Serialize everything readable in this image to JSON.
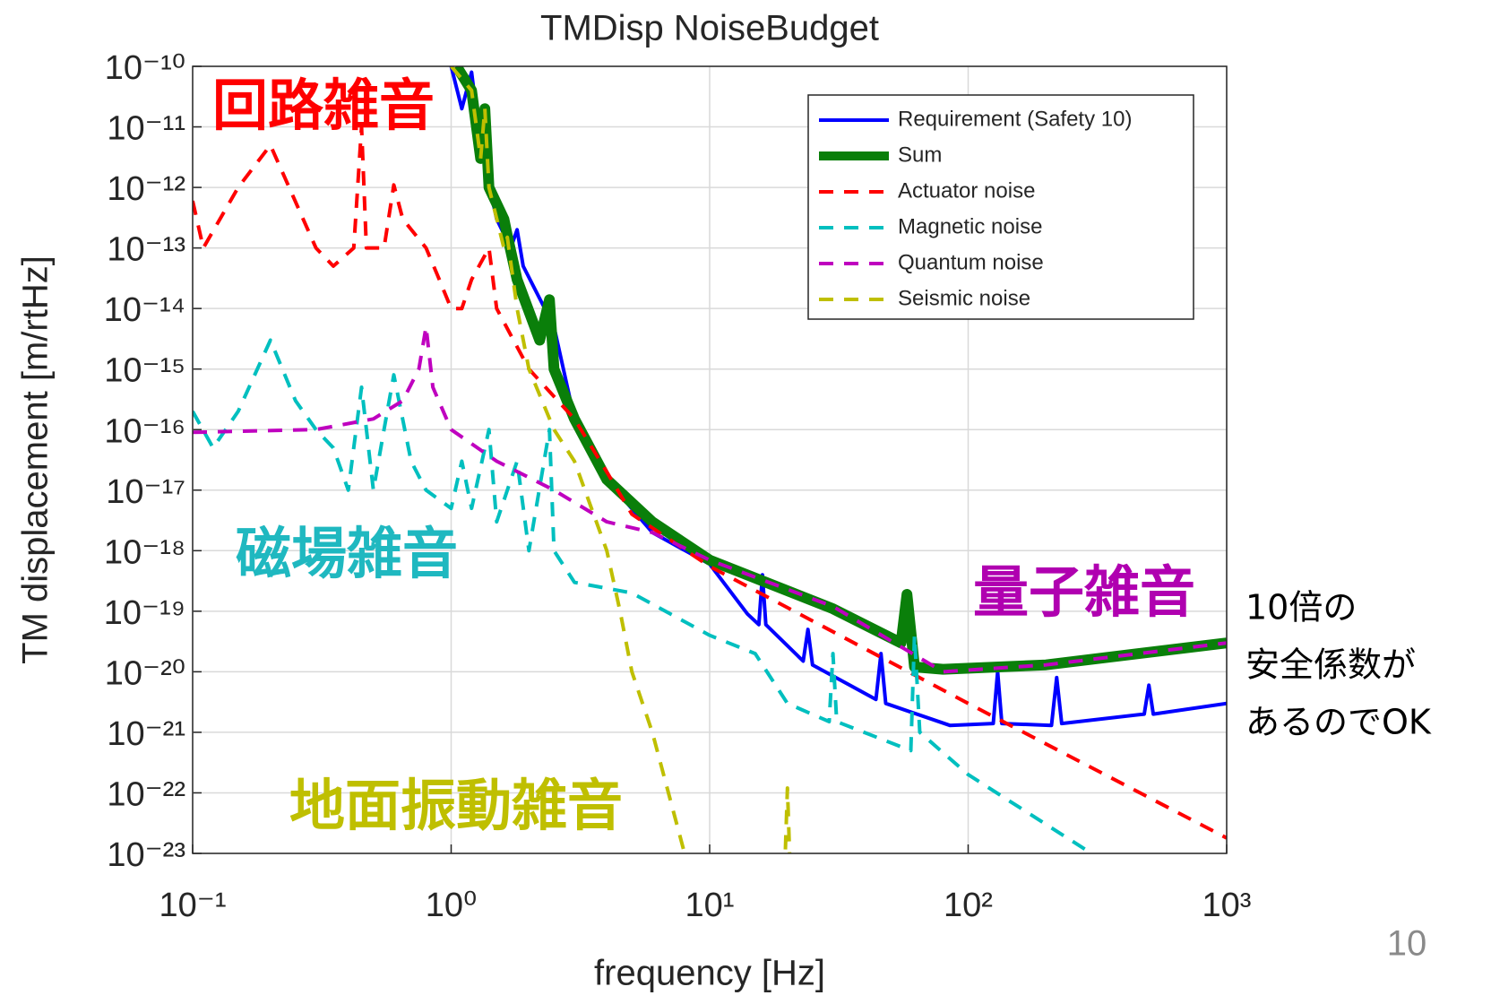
{
  "chart_data": {
    "type": "line",
    "title": "TMDisp NoiseBudget",
    "x_label": "frequency [Hz]",
    "y_label": "TM displacement [m/rtHz]",
    "xscale": "log",
    "yscale": "log",
    "grid": true,
    "legend": "upper right",
    "xlim": [
      0.1,
      1000
    ],
    "xticks": [
      {
        "value": 0.1,
        "label": "10⁻¹"
      },
      {
        "value": 1,
        "label": "10⁰"
      },
      {
        "value": 10,
        "label": "10¹"
      },
      {
        "value": 100,
        "label": "10²"
      },
      {
        "value": 1000,
        "label": "10³"
      }
    ],
    "ylim": [
      1e-23,
      1e-10
    ],
    "yticks": [
      {
        "value": 1e-10,
        "label": "10⁻¹⁰"
      },
      {
        "value": 1e-11,
        "label": "10⁻¹¹"
      },
      {
        "value": 1e-12,
        "label": "10⁻¹²"
      },
      {
        "value": 1e-13,
        "label": "10⁻¹³"
      },
      {
        "value": 1e-14,
        "label": "10⁻¹⁴"
      },
      {
        "value": 1e-15,
        "label": "10⁻¹⁵"
      },
      {
        "value": 1e-16,
        "label": "10⁻¹⁶"
      },
      {
        "value": 1e-17,
        "label": "10⁻¹⁷"
      },
      {
        "value": 1e-18,
        "label": "10⁻¹⁸"
      },
      {
        "value": 1e-19,
        "label": "10⁻¹⁹"
      },
      {
        "value": 1e-20,
        "label": "10⁻²⁰"
      },
      {
        "value": 1e-21,
        "label": "10⁻²¹"
      },
      {
        "value": 1e-22,
        "label": "10⁻²²"
      },
      {
        "value": 1e-23,
        "label": "10⁻²³"
      }
    ],
    "series": [
      {
        "name": "Requirement (Safety 10)",
        "color": "#0000ff",
        "linestyle": "solid",
        "linewidth": 4,
        "x": [
          1.0,
          1.1,
          1.2,
          1.3,
          1.5,
          1.7,
          1.8,
          1.9,
          2.5,
          3,
          4,
          6,
          10,
          14,
          15.5,
          16,
          16.5,
          23,
          24,
          25,
          44,
          46,
          48,
          85,
          125,
          130,
          135,
          210,
          220,
          230,
          480,
          500,
          520,
          1000
        ],
        "values": [
          1e-10,
          2e-11,
          8e-11,
          5e-12,
          3e-13,
          1e-13,
          2e-13,
          5e-14,
          5e-15,
          1.5e-16,
          1.5e-17,
          2e-18,
          6e-19,
          9e-20,
          6e-20,
          4e-19,
          6e-20,
          1.5e-20,
          5e-20,
          1.3e-20,
          3.5e-21,
          2e-20,
          3e-21,
          1.3e-21,
          1.4e-21,
          1e-20,
          1.4e-21,
          1.3e-21,
          8e-21,
          1.4e-21,
          2e-21,
          6e-21,
          2e-21,
          3e-21
        ]
      },
      {
        "name": "Sum",
        "color": "#0a7f0a",
        "linestyle": "solid",
        "linewidth": 12,
        "x": [
          1.05,
          1.2,
          1.3,
          1.35,
          1.4,
          1.6,
          1.65,
          1.8,
          2.2,
          2.4,
          2.5,
          3,
          4,
          6,
          10,
          30,
          55,
          58,
          62,
          80,
          200,
          1000
        ],
        "values": [
          1e-10,
          4e-11,
          3e-12,
          2e-11,
          1e-12,
          3e-13,
          1.6e-13,
          3e-14,
          3e-15,
          1.4e-14,
          1e-15,
          1.5e-16,
          1.5e-17,
          3e-18,
          7e-19,
          1.1e-19,
          3e-20,
          1.9e-19,
          1.2e-20,
          1.1e-20,
          1.3e-20,
          3e-20
        ]
      },
      {
        "name": "Actuator noise",
        "color": "#ff0000",
        "linestyle": "dashed",
        "linewidth": 4,
        "x": [
          0.1,
          0.11,
          0.15,
          0.2,
          0.3,
          0.35,
          0.42,
          0.45,
          0.47,
          0.55,
          0.6,
          0.65,
          0.8,
          0.9,
          1.0,
          1.1,
          1.2,
          1.4,
          1.5,
          2,
          3,
          4,
          5,
          10,
          100,
          1000
        ],
        "values": [
          6e-13,
          1e-13,
          1e-12,
          5e-12,
          1e-13,
          5e-14,
          1e-13,
          1e-11,
          1e-13,
          1e-13,
          1.1e-12,
          3e-13,
          1e-13,
          3e-14,
          1e-14,
          1e-14,
          3e-14,
          1e-13,
          1e-14,
          1e-15,
          1.5e-16,
          2e-17,
          4e-18,
          5.5e-19,
          3e-21,
          1.8e-23
        ]
      },
      {
        "name": "Magnetic noise",
        "color": "#00bfbf",
        "linestyle": "dashed",
        "linewidth": 4,
        "x": [
          0.1,
          0.12,
          0.15,
          0.2,
          0.25,
          0.3,
          0.35,
          0.4,
          0.45,
          0.5,
          0.55,
          0.6,
          0.7,
          0.8,
          1.0,
          1.1,
          1.2,
          1.4,
          1.5,
          1.8,
          2,
          2.4,
          2.5,
          3,
          5,
          10,
          15,
          20,
          29,
          30,
          31,
          60,
          62,
          65,
          100,
          300
        ],
        "values": [
          2e-16,
          5e-17,
          2e-16,
          3e-15,
          3e-16,
          1e-16,
          5e-17,
          1e-17,
          5e-16,
          1e-17,
          1e-16,
          8e-16,
          3e-17,
          1e-17,
          5e-18,
          3e-17,
          5e-18,
          1e-16,
          3e-18,
          3e-17,
          1e-18,
          1e-16,
          1e-18,
          3e-19,
          2e-19,
          4e-20,
          2e-20,
          3e-21,
          1.5e-21,
          2e-20,
          1.5e-21,
          5e-22,
          4e-20,
          1e-21,
          2e-22,
          1e-23
        ]
      },
      {
        "name": "Quantum noise",
        "color": "#bf00bf",
        "linestyle": "dashed",
        "linewidth": 4,
        "x": [
          0.1,
          0.3,
          0.5,
          0.65,
          0.75,
          0.8,
          0.85,
          1,
          1.5,
          2.5,
          4,
          6,
          10,
          30,
          80,
          200,
          1000
        ],
        "values": [
          9e-17,
          1e-16,
          1.5e-16,
          3e-16,
          1e-15,
          5e-15,
          5e-16,
          1e-16,
          3e-17,
          1e-17,
          3e-18,
          2e-18,
          7e-19,
          1.2e-19,
          1e-20,
          1.3e-20,
          3e-20
        ]
      },
      {
        "name": "Seismic noise",
        "color": "#bfbf00",
        "linestyle": "dashed",
        "linewidth": 4,
        "x": [
          1.0,
          1.2,
          1.3,
          1.35,
          1.4,
          1.6,
          1.65,
          1.8,
          2,
          2.5,
          3,
          4,
          4.5,
          5,
          6,
          8,
          9,
          19.5,
          20,
          20.5
        ],
        "values": [
          1e-10,
          4e-11,
          3e-12,
          2e-11,
          1e-12,
          1e-13,
          1.5e-13,
          1e-14,
          1e-15,
          1e-16,
          3e-17,
          1e-18,
          1e-19,
          1e-20,
          1e-21,
          1e-23,
          5e-24,
          5e-24,
          1.2e-22,
          5e-24
        ]
      }
    ]
  },
  "slide": {
    "annotations": [
      {
        "text": "回路雑音",
        "color": "#ff0000"
      },
      {
        "text": "磁場雑音",
        "color": "#1fb8c0"
      },
      {
        "text": "量子雑音",
        "color": "#b000b0"
      },
      {
        "text": "地面振動雑音",
        "color": "#bfbf00"
      }
    ],
    "note": [
      "10倍の",
      "安全係数が",
      "あるのでOK"
    ],
    "page_number": "10"
  }
}
